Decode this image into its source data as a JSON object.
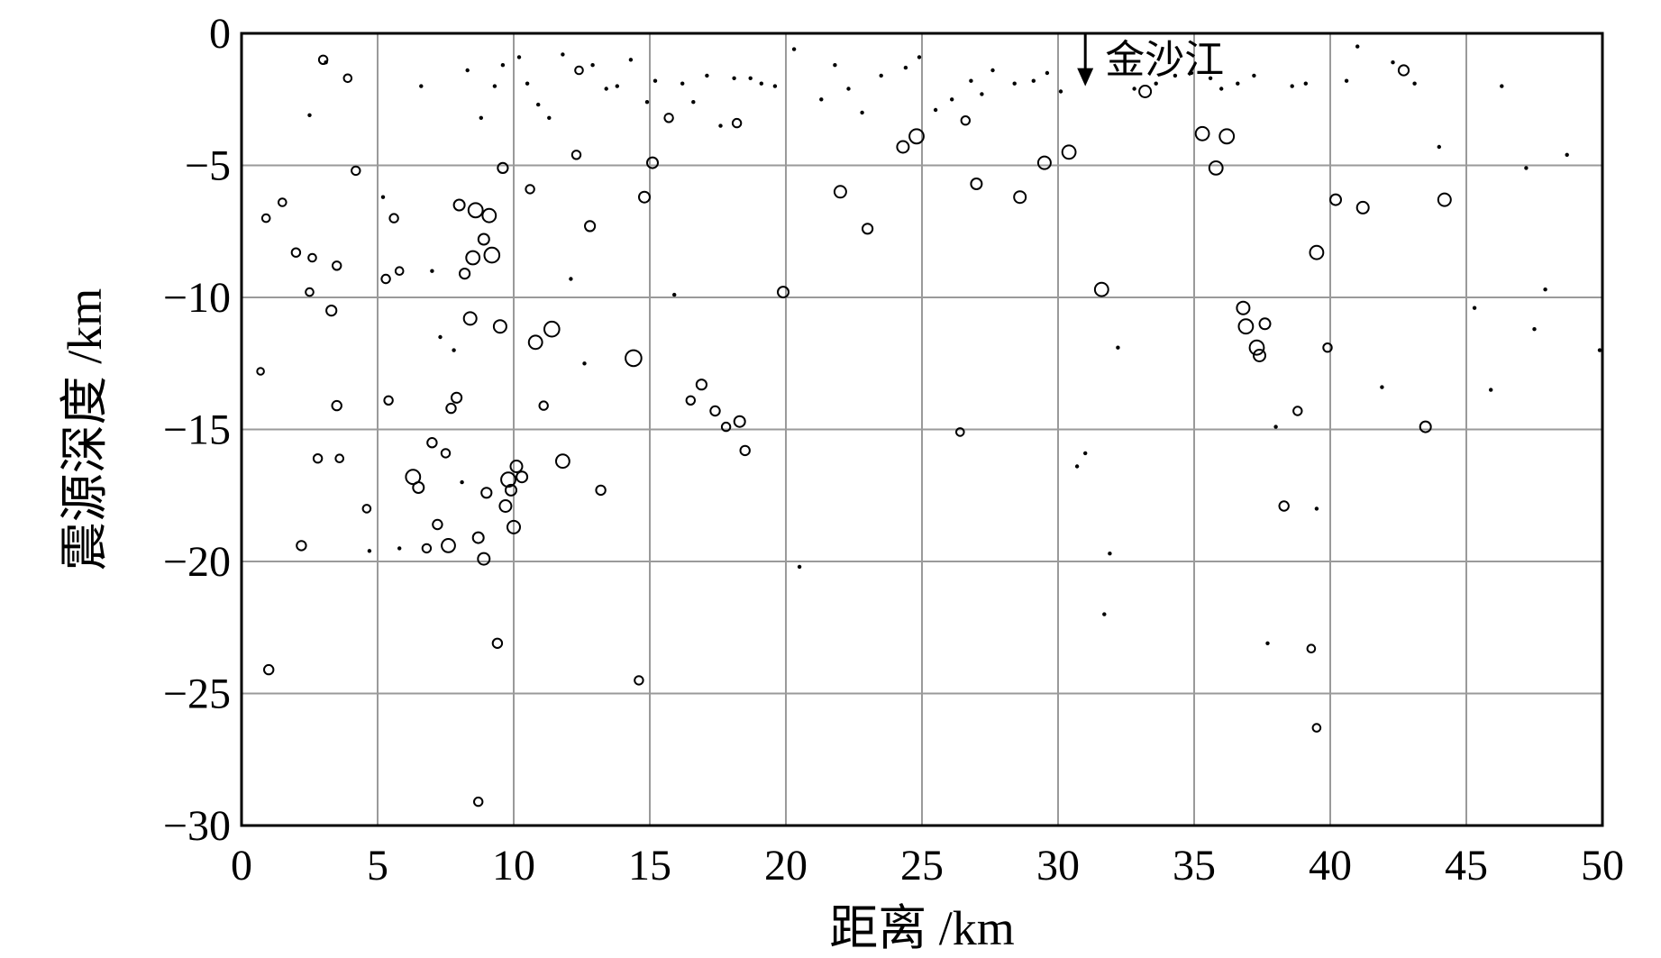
{
  "chart_data": {
    "type": "scatter",
    "xlabel": "距离 /km",
    "ylabel": "震源深度 /km",
    "xlim": [
      0,
      50
    ],
    "ylim": [
      -30,
      0
    ],
    "grid": true,
    "x_ticks": [
      "0",
      "5",
      "10",
      "15",
      "20",
      "25",
      "30",
      "35",
      "40",
      "45",
      "50"
    ],
    "y_ticks": [
      "0",
      "−5",
      "−10",
      "−15",
      "−20",
      "−25",
      "−30"
    ],
    "annotation": {
      "text": "金沙江",
      "x": 31.0,
      "y": -2.0,
      "arrow": "down"
    },
    "colors": {
      "grid": "#9a9a9a",
      "axis": "#000000",
      "marker": "#000000"
    },
    "series": [
      {
        "marker": "open-circle",
        "points": [
          [
            0.7,
            -12.8,
            0.4
          ],
          [
            1.0,
            -24.1,
            0.7
          ],
          [
            0.9,
            -7.0,
            0.5
          ],
          [
            1.5,
            -6.4,
            0.5
          ],
          [
            2.0,
            -8.3,
            0.6
          ],
          [
            2.2,
            -19.4,
            0.7
          ],
          [
            2.5,
            -9.8,
            0.5
          ],
          [
            2.6,
            -8.5,
            0.5
          ],
          [
            2.8,
            -16.1,
            0.6
          ],
          [
            3.0,
            -1.0,
            0.6
          ],
          [
            3.3,
            -10.5,
            0.8
          ],
          [
            3.5,
            -14.1,
            0.7
          ],
          [
            3.5,
            -8.8,
            0.6
          ],
          [
            3.6,
            -16.1,
            0.5
          ],
          [
            3.9,
            -1.7,
            0.5
          ],
          [
            4.2,
            -5.2,
            0.6
          ],
          [
            4.6,
            -18.0,
            0.5
          ],
          [
            5.3,
            -9.3,
            0.6
          ],
          [
            5.4,
            -13.9,
            0.6
          ],
          [
            5.6,
            -7.0,
            0.6
          ],
          [
            5.8,
            -9.0,
            0.5
          ],
          [
            6.3,
            -16.8,
            1.3
          ],
          [
            6.5,
            -17.2,
            0.9
          ],
          [
            6.8,
            -19.5,
            0.6
          ],
          [
            7.0,
            -15.5,
            0.7
          ],
          [
            7.2,
            -18.6,
            0.7
          ],
          [
            7.5,
            -15.9,
            0.6
          ],
          [
            7.6,
            -19.4,
            1.2
          ],
          [
            7.7,
            -14.2,
            0.7
          ],
          [
            7.9,
            -13.8,
            0.8
          ],
          [
            8.0,
            -6.5,
            0.9
          ],
          [
            8.2,
            -9.1,
            0.8
          ],
          [
            8.4,
            -10.8,
            1.1
          ],
          [
            8.5,
            -8.5,
            1.2
          ],
          [
            8.6,
            -6.7,
            1.3
          ],
          [
            8.7,
            -19.1,
            0.9
          ],
          [
            8.7,
            -29.1,
            0.6
          ],
          [
            8.9,
            -19.9,
            1.0
          ],
          [
            8.9,
            -7.8,
            0.9
          ],
          [
            9.0,
            -17.4,
            0.8
          ],
          [
            9.1,
            -6.9,
            1.2
          ],
          [
            9.2,
            -8.4,
            1.4
          ],
          [
            9.4,
            -23.1,
            0.7
          ],
          [
            9.5,
            -11.1,
            1.1
          ],
          [
            9.6,
            -5.1,
            0.8
          ],
          [
            9.7,
            -17.9,
            1.0
          ],
          [
            9.8,
            -16.9,
            1.3
          ],
          [
            9.9,
            -17.3,
            0.9
          ],
          [
            10.0,
            -18.7,
            1.1
          ],
          [
            10.1,
            -16.4,
            1.0
          ],
          [
            10.3,
            -16.8,
            0.9
          ],
          [
            10.6,
            -5.9,
            0.6
          ],
          [
            10.8,
            -11.7,
            1.2
          ],
          [
            11.1,
            -14.1,
            0.6
          ],
          [
            11.4,
            -11.2,
            1.4
          ],
          [
            11.8,
            -16.2,
            1.2
          ],
          [
            12.3,
            -4.6,
            0.6
          ],
          [
            12.4,
            -1.4,
            0.5
          ],
          [
            12.8,
            -7.3,
            0.8
          ],
          [
            13.2,
            -17.3,
            0.7
          ],
          [
            14.4,
            -12.3,
            1.5
          ],
          [
            14.6,
            -24.5,
            0.6
          ],
          [
            14.8,
            -6.2,
            0.9
          ],
          [
            15.1,
            -4.9,
            0.9
          ],
          [
            15.7,
            -3.2,
            0.6
          ],
          [
            16.5,
            -13.9,
            0.6
          ],
          [
            16.9,
            -13.3,
            0.8
          ],
          [
            17.4,
            -14.3,
            0.7
          ],
          [
            17.8,
            -14.9,
            0.6
          ],
          [
            18.2,
            -3.4,
            0.6
          ],
          [
            18.3,
            -14.7,
            0.9
          ],
          [
            18.5,
            -15.8,
            0.7
          ],
          [
            19.9,
            -9.8,
            0.9
          ],
          [
            22.0,
            -6.0,
            1.0
          ],
          [
            23.0,
            -7.4,
            0.8
          ],
          [
            24.3,
            -4.3,
            1.0
          ],
          [
            24.8,
            -3.9,
            1.3
          ],
          [
            26.4,
            -15.1,
            0.5
          ],
          [
            26.6,
            -3.3,
            0.6
          ],
          [
            27.0,
            -5.7,
            0.9
          ],
          [
            28.6,
            -6.2,
            1.0
          ],
          [
            29.5,
            -4.9,
            1.1
          ],
          [
            30.4,
            -4.5,
            1.2
          ],
          [
            31.6,
            -9.7,
            1.2
          ],
          [
            33.2,
            -2.2,
            1.0
          ],
          [
            35.3,
            -3.8,
            1.2
          ],
          [
            35.8,
            -5.1,
            1.2
          ],
          [
            36.2,
            -3.9,
            1.3
          ],
          [
            36.8,
            -10.4,
            1.1
          ],
          [
            36.9,
            -11.1,
            1.3
          ],
          [
            37.3,
            -11.9,
            1.3
          ],
          [
            37.4,
            -12.2,
            1.0
          ],
          [
            37.6,
            -11.0,
            0.9
          ],
          [
            38.3,
            -17.9,
            0.7
          ],
          [
            38.8,
            -14.3,
            0.6
          ],
          [
            39.5,
            -8.3,
            1.2
          ],
          [
            39.9,
            -11.9,
            0.6
          ],
          [
            40.2,
            -6.3,
            0.9
          ],
          [
            41.2,
            -6.6,
            1.0
          ],
          [
            42.7,
            -1.4,
            0.8
          ],
          [
            43.5,
            -14.9,
            0.9
          ],
          [
            44.2,
            -6.3,
            1.1
          ],
          [
            39.3,
            -23.3,
            0.5
          ],
          [
            39.5,
            -26.3,
            0.5
          ]
        ]
      },
      {
        "marker": "small-dot",
        "points": [
          [
            2.5,
            -3.1
          ],
          [
            3.1,
            -1.1
          ],
          [
            4.7,
            -19.6
          ],
          [
            5.2,
            -6.2
          ],
          [
            5.8,
            -19.5
          ],
          [
            6.6,
            -2.0
          ],
          [
            7.0,
            -9.0
          ],
          [
            7.3,
            -11.5
          ],
          [
            7.8,
            -12.0
          ],
          [
            8.1,
            -17.0
          ],
          [
            8.3,
            -1.4
          ],
          [
            8.8,
            -3.2
          ],
          [
            9.3,
            -2.0
          ],
          [
            9.6,
            -1.2
          ],
          [
            10.2,
            -0.9
          ],
          [
            10.5,
            -1.9
          ],
          [
            10.9,
            -2.7
          ],
          [
            11.3,
            -3.2
          ],
          [
            11.8,
            -0.8
          ],
          [
            12.1,
            -9.3
          ],
          [
            12.6,
            -12.5
          ],
          [
            12.9,
            -1.2
          ],
          [
            13.4,
            -2.1
          ],
          [
            13.8,
            -2.0
          ],
          [
            14.3,
            -1.0
          ],
          [
            14.9,
            -2.6
          ],
          [
            15.2,
            -1.8
          ],
          [
            15.9,
            -9.9
          ],
          [
            16.2,
            -1.9
          ],
          [
            16.6,
            -2.6
          ],
          [
            17.1,
            -1.6
          ],
          [
            17.6,
            -3.5
          ],
          [
            18.1,
            -1.7
          ],
          [
            18.7,
            -1.7
          ],
          [
            19.1,
            -1.9
          ],
          [
            19.6,
            -2.0
          ],
          [
            20.3,
            -0.6
          ],
          [
            20.5,
            -20.2
          ],
          [
            21.3,
            -2.5
          ],
          [
            21.8,
            -1.2
          ],
          [
            22.3,
            -2.1
          ],
          [
            22.8,
            -3.0
          ],
          [
            23.5,
            -1.6
          ],
          [
            24.4,
            -1.3
          ],
          [
            24.9,
            -0.9
          ],
          [
            25.5,
            -2.9
          ],
          [
            26.1,
            -2.5
          ],
          [
            26.8,
            -1.8
          ],
          [
            27.2,
            -2.3
          ],
          [
            27.6,
            -1.4
          ],
          [
            28.4,
            -1.9
          ],
          [
            29.1,
            -1.8
          ],
          [
            29.6,
            -1.5
          ],
          [
            30.1,
            -2.2
          ],
          [
            30.7,
            -16.4
          ],
          [
            31.0,
            -15.9
          ],
          [
            31.7,
            -22.0
          ],
          [
            31.9,
            -19.7
          ],
          [
            32.2,
            -11.9
          ],
          [
            32.8,
            -2.1
          ],
          [
            33.6,
            -1.9
          ],
          [
            34.3,
            -1.6
          ],
          [
            34.9,
            -1.5
          ],
          [
            35.6,
            -1.7
          ],
          [
            36.0,
            -2.1
          ],
          [
            36.6,
            -1.9
          ],
          [
            37.2,
            -1.6
          ],
          [
            37.7,
            -23.1
          ],
          [
            38.0,
            -14.9
          ],
          [
            38.6,
            -2.0
          ],
          [
            39.1,
            -1.9
          ],
          [
            39.5,
            -18.0
          ],
          [
            40.6,
            -1.8
          ],
          [
            41.0,
            -0.5
          ],
          [
            41.9,
            -13.4
          ],
          [
            42.3,
            -1.1
          ],
          [
            43.1,
            -1.9
          ],
          [
            44.0,
            -4.3
          ],
          [
            45.3,
            -10.4
          ],
          [
            45.9,
            -13.5
          ],
          [
            46.3,
            -2.0
          ],
          [
            47.2,
            -5.1
          ],
          [
            47.5,
            -11.2
          ],
          [
            47.9,
            -9.7
          ],
          [
            48.7,
            -4.6
          ],
          [
            49.9,
            -12.0
          ]
        ]
      }
    ]
  }
}
